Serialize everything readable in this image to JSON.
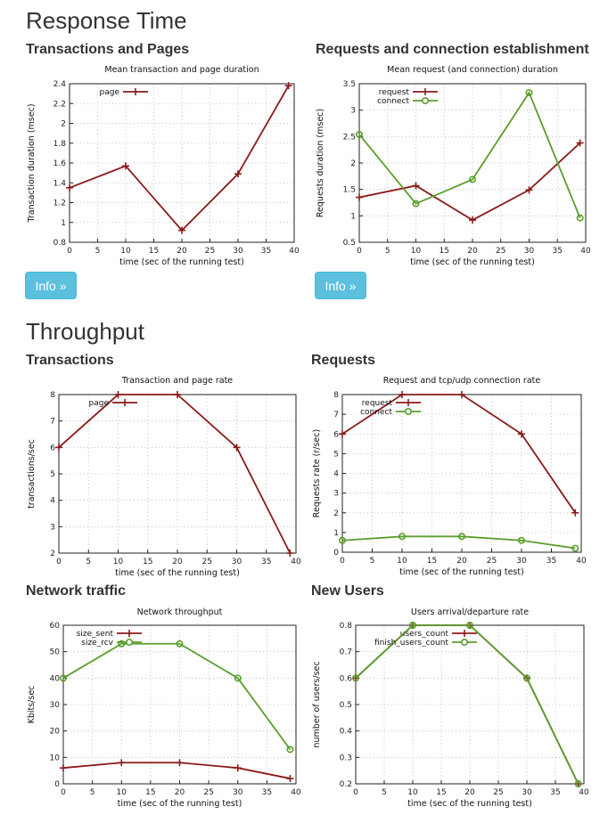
{
  "sections": {
    "response_time": {
      "title": "Response Time",
      "info_label": "Info »"
    },
    "throughput": {
      "title": "Throughput"
    }
  },
  "charts_titles": {
    "c1": "Transactions and Pages",
    "c2": "Requests and connection establishment",
    "c3": "Transactions",
    "c4": "Requests",
    "c5": "Network traffic",
    "c6": "New Users"
  },
  "colors": {
    "series1": "#8b1a1a",
    "series2": "#5a9e2b",
    "grid": "#bbbbbb"
  },
  "chart_data": [
    {
      "id": "c1",
      "type": "line",
      "title": "Mean transaction and page duration",
      "xlabel": "time (sec of the running test)",
      "ylabel": "Transaction duration (msec)",
      "xlim": [
        0,
        40
      ],
      "ylim": [
        0.8,
        2.4
      ],
      "xticks": [
        0,
        5,
        10,
        15,
        20,
        25,
        30,
        35,
        40
      ],
      "yticks": [
        0.8,
        1,
        1.2,
        1.4,
        1.6,
        1.8,
        2,
        2.2,
        2.4
      ],
      "grid": true,
      "legend": "top-left",
      "series": [
        {
          "name": "page",
          "marker": "plus",
          "color": "#8b1a1a",
          "x": [
            0,
            10,
            20,
            30,
            39
          ],
          "y": [
            1.35,
            1.57,
            0.92,
            1.49,
            2.38
          ]
        }
      ]
    },
    {
      "id": "c2",
      "type": "line",
      "title": "Mean request (and connection) duration",
      "xlabel": "time (sec of the running test)",
      "ylabel": "Requests duration (msec)",
      "xlim": [
        0,
        40
      ],
      "ylim": [
        0.5,
        3.5
      ],
      "xticks": [
        0,
        5,
        10,
        15,
        20,
        25,
        30,
        35,
        40
      ],
      "yticks": [
        0.5,
        1,
        1.5,
        2,
        2.5,
        3,
        3.5
      ],
      "grid": true,
      "legend": "top-left",
      "series": [
        {
          "name": "request",
          "marker": "plus",
          "color": "#8b1a1a",
          "x": [
            0,
            10,
            20,
            30,
            39
          ],
          "y": [
            1.35,
            1.57,
            0.92,
            1.49,
            2.38
          ]
        },
        {
          "name": "connect",
          "marker": "circle",
          "color": "#5a9e2b",
          "x": [
            0,
            10,
            20,
            30,
            39
          ],
          "y": [
            2.54,
            1.23,
            1.69,
            3.33,
            0.96
          ]
        }
      ]
    },
    {
      "id": "c3",
      "type": "line",
      "title": "Transaction and page rate",
      "xlabel": "time (sec of the running test)",
      "ylabel": "transactions/sec",
      "xlim": [
        0,
        40
      ],
      "ylim": [
        2,
        8
      ],
      "xticks": [
        0,
        5,
        10,
        15,
        20,
        25,
        30,
        35,
        40
      ],
      "yticks": [
        2,
        3,
        4,
        5,
        6,
        7,
        8
      ],
      "grid": true,
      "legend": "top-left",
      "series": [
        {
          "name": "page",
          "marker": "plus",
          "color": "#8b1a1a",
          "x": [
            0,
            10,
            20,
            30,
            39
          ],
          "y": [
            6,
            8,
            8,
            6,
            2
          ]
        }
      ]
    },
    {
      "id": "c4",
      "type": "line",
      "title": "Request and tcp/udp connection rate",
      "xlabel": "time (sec of the running test)",
      "ylabel": "Requests rate (r/sec)",
      "xlim": [
        0,
        40
      ],
      "ylim": [
        0,
        8
      ],
      "xticks": [
        0,
        5,
        10,
        15,
        20,
        25,
        30,
        35,
        40
      ],
      "yticks": [
        0,
        1,
        2,
        3,
        4,
        5,
        6,
        7,
        8
      ],
      "grid": true,
      "legend": "top-left",
      "series": [
        {
          "name": "request",
          "marker": "plus",
          "color": "#8b1a1a",
          "x": [
            0,
            10,
            20,
            30,
            39
          ],
          "y": [
            6,
            8,
            8,
            6,
            2
          ]
        },
        {
          "name": "connect",
          "marker": "circle",
          "color": "#5a9e2b",
          "x": [
            0,
            10,
            20,
            30,
            39
          ],
          "y": [
            0.6,
            0.8,
            0.8,
            0.6,
            0.2
          ]
        }
      ]
    },
    {
      "id": "c5",
      "type": "line",
      "title": "Network throughput",
      "xlabel": "time (sec of the running test)",
      "ylabel": "Kbits/sec",
      "xlim": [
        0,
        40
      ],
      "ylim": [
        0,
        60
      ],
      "xticks": [
        0,
        5,
        10,
        15,
        20,
        25,
        30,
        35,
        40
      ],
      "yticks": [
        0,
        10,
        20,
        30,
        40,
        50,
        60
      ],
      "grid": true,
      "legend": "top-left",
      "series": [
        {
          "name": "size_sent",
          "marker": "plus",
          "color": "#8b1a1a",
          "x": [
            0,
            10,
            20,
            30,
            39
          ],
          "y": [
            6,
            8,
            8,
            6,
            2
          ]
        },
        {
          "name": "size_rcv",
          "marker": "circle",
          "color": "#5a9e2b",
          "x": [
            0,
            10,
            20,
            30,
            39
          ],
          "y": [
            40,
            53,
            53,
            40,
            13
          ]
        }
      ]
    },
    {
      "id": "c6",
      "type": "line",
      "title": "Users arrival/departure rate",
      "xlabel": "time (sec of the running test)",
      "ylabel": "number of users/sec",
      "xlim": [
        0,
        40
      ],
      "ylim": [
        0.2,
        0.8
      ],
      "xticks": [
        0,
        5,
        10,
        15,
        20,
        25,
        30,
        35,
        40
      ],
      "yticks": [
        0.2,
        0.3,
        0.4,
        0.5,
        0.6,
        0.7,
        0.8
      ],
      "grid": true,
      "legend": "top-left",
      "series": [
        {
          "name": "users_count",
          "marker": "plus",
          "color": "#8b1a1a",
          "x": [
            0,
            10,
            20,
            30,
            39
          ],
          "y": [
            0.6,
            0.8,
            0.8,
            0.6,
            0.2
          ]
        },
        {
          "name": "finish_users_count",
          "marker": "circle",
          "color": "#5a9e2b",
          "x": [
            0,
            10,
            20,
            30,
            39
          ],
          "y": [
            0.6,
            0.8,
            0.8,
            0.6,
            0.2
          ]
        }
      ]
    }
  ]
}
